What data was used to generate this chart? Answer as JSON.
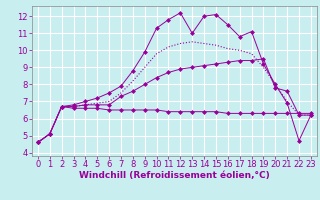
{
  "background_color": "#c8eef0",
  "grid_color": "#ffffff",
  "line_color": "#990099",
  "marker_symbol": "D",
  "marker_size": 2,
  "xlabel": "Windchill (Refroidissement éolien,°C)",
  "xlabel_fontsize": 6.5,
  "tick_fontsize": 6,
  "xlim": [
    -0.5,
    23.5
  ],
  "ylim": [
    3.8,
    12.6
  ],
  "yticks": [
    4,
    5,
    6,
    7,
    8,
    9,
    10,
    11,
    12
  ],
  "xticks": [
    0,
    1,
    2,
    3,
    4,
    5,
    6,
    7,
    8,
    9,
    10,
    11,
    12,
    13,
    14,
    15,
    16,
    17,
    18,
    19,
    20,
    21,
    22,
    23
  ],
  "series": [
    {
      "x": [
        0,
        1,
        2,
        3,
        4,
        5,
        6,
        7,
        8,
        9,
        10,
        11,
        12,
        13,
        14,
        15,
        16,
        17,
        18,
        19,
        20,
        21,
        22,
        23
      ],
      "y": [
        4.6,
        5.1,
        6.7,
        6.6,
        6.6,
        6.6,
        6.5,
        6.5,
        6.5,
        6.5,
        6.5,
        6.4,
        6.4,
        6.4,
        6.4,
        6.4,
        6.3,
        6.3,
        6.3,
        6.3,
        6.3,
        6.3,
        6.3,
        6.3
      ],
      "linestyle": "-",
      "marker": true,
      "linewidth": 0.7
    },
    {
      "x": [
        0,
        1,
        2,
        3,
        4,
        5,
        6,
        7,
        8,
        9,
        10,
        11,
        12,
        13,
        14,
        15,
        16,
        17,
        18,
        19,
        20,
        21,
        22,
        23
      ],
      "y": [
        4.6,
        5.1,
        6.7,
        6.7,
        6.8,
        6.8,
        6.8,
        7.3,
        7.6,
        8.0,
        8.4,
        8.7,
        8.9,
        9.0,
        9.1,
        9.2,
        9.3,
        9.4,
        9.4,
        9.5,
        7.8,
        7.6,
        6.2,
        6.2
      ],
      "linestyle": "-",
      "marker": true,
      "linewidth": 0.7
    },
    {
      "x": [
        0,
        1,
        2,
        3,
        4,
        5,
        6,
        7,
        8,
        9,
        10,
        11,
        12,
        13,
        14,
        15,
        16,
        17,
        18,
        19,
        20,
        21,
        22,
        23
      ],
      "y": [
        4.6,
        5.1,
        6.7,
        6.7,
        6.8,
        6.9,
        7.0,
        7.5,
        8.2,
        9.0,
        9.8,
        10.2,
        10.4,
        10.5,
        10.4,
        10.3,
        10.1,
        10.0,
        9.8,
        9.0,
        8.0,
        7.0,
        6.2,
        6.2
      ],
      "linestyle": ":",
      "marker": false,
      "linewidth": 0.8
    },
    {
      "x": [
        0,
        1,
        2,
        3,
        4,
        5,
        6,
        7,
        8,
        9,
        10,
        11,
        12,
        13,
        14,
        15,
        16,
        17,
        18,
        19,
        20,
        21,
        22,
        23
      ],
      "y": [
        4.6,
        5.1,
        6.7,
        6.8,
        7.0,
        7.2,
        7.5,
        7.9,
        8.8,
        9.9,
        11.3,
        11.8,
        12.2,
        11.0,
        12.0,
        12.1,
        11.5,
        10.8,
        11.1,
        9.2,
        8.0,
        6.9,
        4.7,
        6.2
      ],
      "linestyle": "-",
      "marker": true,
      "linewidth": 0.7
    }
  ]
}
